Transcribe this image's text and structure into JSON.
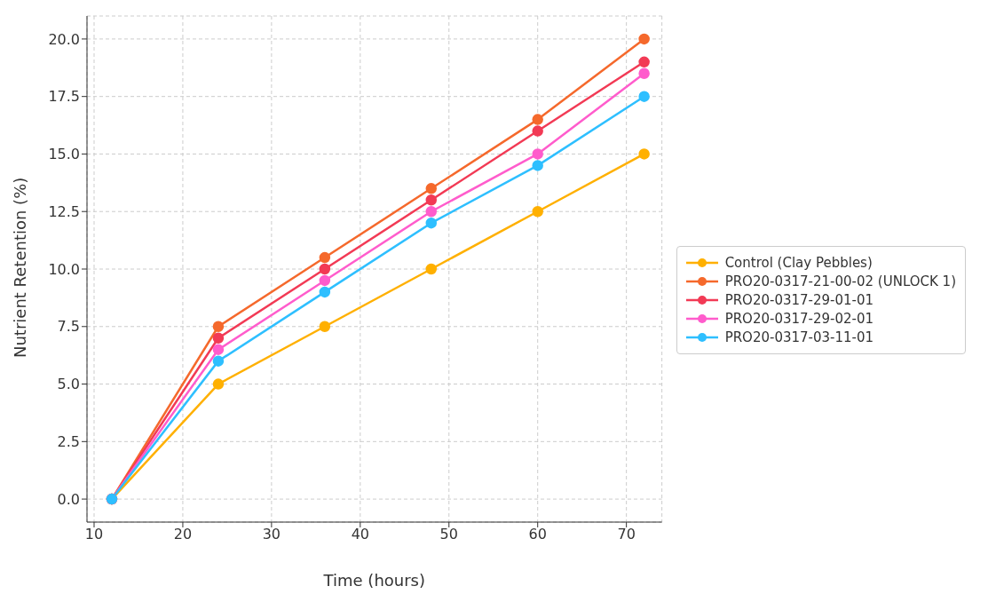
{
  "chart_data": {
    "type": "line",
    "xlabel": "Time (hours)",
    "ylabel": "Nutrient Retention (%)",
    "x": [
      12,
      24,
      36,
      48,
      60,
      72
    ],
    "series": [
      {
        "name": "Control (Clay Pebbles)",
        "color": "#ffb000",
        "values": [
          0,
          5,
          7.5,
          10,
          12.5,
          15
        ]
      },
      {
        "name": "PRO20-0317-21-00-02 (UNLOCK 1)",
        "color": "#f5692c",
        "values": [
          0,
          7.5,
          10.5,
          13.5,
          16.5,
          20
        ]
      },
      {
        "name": "PRO20-0317-29-01-01",
        "color": "#f23a55",
        "values": [
          0,
          7,
          10,
          13,
          16,
          19
        ]
      },
      {
        "name": "PRO20-0317-29-02-01",
        "color": "#ff5ccc",
        "values": [
          0,
          6.5,
          9.5,
          12.5,
          15,
          18.5
        ]
      },
      {
        "name": "PRO20-0317-03-11-01",
        "color": "#2ebfff",
        "values": [
          0,
          6,
          9,
          12,
          14.5,
          17.5
        ]
      }
    ],
    "xlim": [
      9.2,
      74
    ],
    "xticks": [
      10,
      20,
      30,
      40,
      50,
      60,
      70
    ],
    "ylim": [
      -1,
      21
    ],
    "yticks": [
      {
        "value": 0,
        "label": "0.0"
      },
      2.5,
      {
        "value": 5,
        "label": "5.0"
      },
      7.5,
      {
        "value": 10,
        "label": "10.0"
      },
      12.5,
      {
        "value": 15,
        "label": "15.0"
      },
      17.5,
      {
        "value": 20,
        "label": "20.0"
      }
    ],
    "grid": true,
    "legend": "right",
    "marker": "circle",
    "line_style": "solid"
  }
}
